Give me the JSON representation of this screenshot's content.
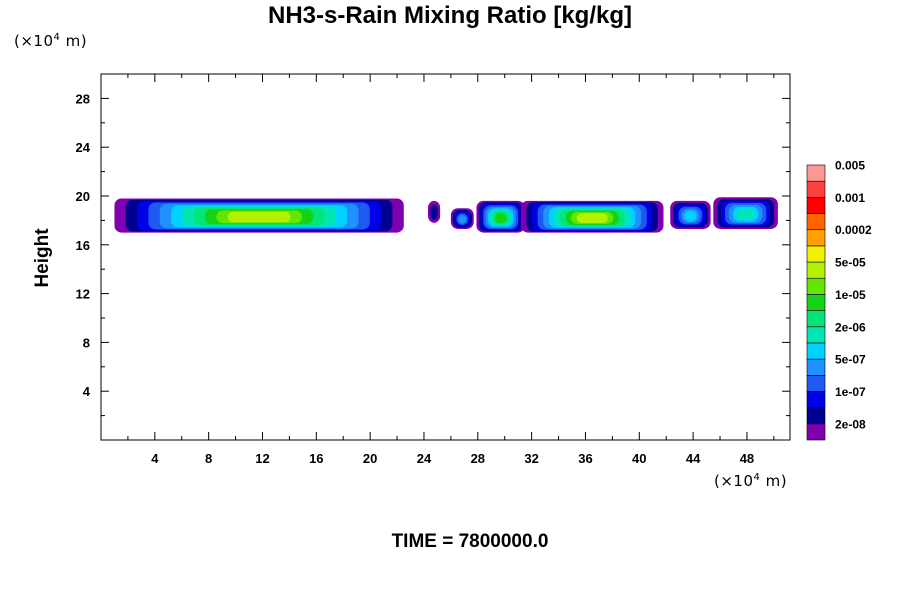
{
  "chart_data": {
    "type": "heatmap",
    "title": "NH3-s-Rain Mixing Ratio [kg/kg]",
    "ylabel": "Height",
    "xlabel": "",
    "x_unit": {
      "prefix": "(×10",
      "exp": "4",
      "suffix": " m)"
    },
    "y_unit": {
      "prefix": "(×10",
      "exp": "4",
      "suffix": " m)"
    },
    "xlim": [
      0,
      51.2
    ],
    "ylim": [
      0,
      30
    ],
    "xticks": [
      4,
      8,
      12,
      16,
      20,
      24,
      28,
      32,
      36,
      40,
      44,
      48
    ],
    "yticks": [
      4,
      8,
      12,
      16,
      20,
      24,
      28
    ],
    "colorbar": {
      "colors": [
        "#8000b0",
        "#000090",
        "#0000e6",
        "#1e5af0",
        "#1e90ff",
        "#00d2ff",
        "#00e6b4",
        "#00e678",
        "#14d214",
        "#64e600",
        "#b4f000",
        "#f0f000",
        "#ffa000",
        "#ff6400",
        "#ff0000",
        "#ff4040",
        "#ff9696"
      ],
      "labels": [
        "2e-08",
        "1e-07",
        "5e-07",
        "2e-06",
        "1e-05",
        "5e-05",
        "0.0002",
        "0.001",
        "0.005"
      ]
    },
    "field_blobs": [
      {
        "x0": 1.0,
        "x1": 22.5,
        "y0": 17.0,
        "y1": 19.8,
        "peak": "2e-05"
      },
      {
        "x0": 24.3,
        "x1": 25.2,
        "y0": 17.8,
        "y1": 19.6,
        "peak": "2e-08"
      },
      {
        "x0": 26.0,
        "x1": 27.7,
        "y0": 17.3,
        "y1": 19.0,
        "peak": "2e-07"
      },
      {
        "x0": 27.9,
        "x1": 31.5,
        "y0": 17.0,
        "y1": 19.6,
        "peak": "5e-06"
      },
      {
        "x0": 31.2,
        "x1": 41.8,
        "y0": 17.0,
        "y1": 19.6,
        "peak": "2e-05"
      },
      {
        "x0": 42.3,
        "x1": 45.3,
        "y0": 17.3,
        "y1": 19.6,
        "peak": "5e-07"
      },
      {
        "x0": 45.5,
        "x1": 50.3,
        "y0": 17.3,
        "y1": 19.9,
        "peak": "1e-06"
      }
    ]
  },
  "time_label": "TIME = 7800000.0"
}
